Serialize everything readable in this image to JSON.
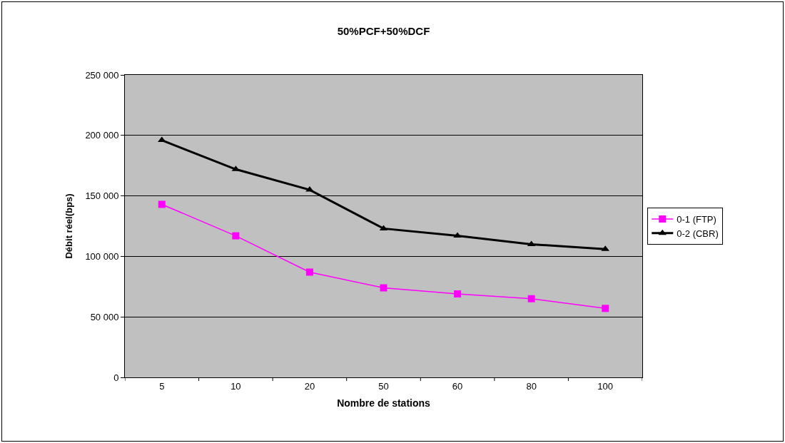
{
  "chart_data": {
    "type": "line",
    "title": "50%PCF+50%DCF",
    "xlabel": "Nombre de stations",
    "ylabel": "Débit réel(bps)",
    "categories": [
      "5",
      "10",
      "20",
      "50",
      "60",
      "80",
      "100"
    ],
    "series": [
      {
        "name": "0-1 (FTP)",
        "color": "#ff00ff",
        "marker": "square",
        "values": [
          143000,
          117000,
          87000,
          74000,
          69000,
          65000,
          57000
        ]
      },
      {
        "name": "0-2 (CBR)",
        "color": "#000000",
        "marker": "triangle",
        "values": [
          196000,
          172000,
          155000,
          123000,
          117000,
          110000,
          106000
        ]
      }
    ],
    "ylim": [
      0,
      250000
    ],
    "yticks": [
      {
        "value": 0,
        "label": "0"
      },
      {
        "value": 50000,
        "label": "50 000"
      },
      {
        "value": 100000,
        "label": "100 000"
      },
      {
        "value": 150000,
        "label": "150 000"
      },
      {
        "value": 200000,
        "label": "200 000"
      },
      {
        "value": 250000,
        "label": "250 000"
      }
    ],
    "grid": "y",
    "legend": "right",
    "line_style": "solid"
  }
}
